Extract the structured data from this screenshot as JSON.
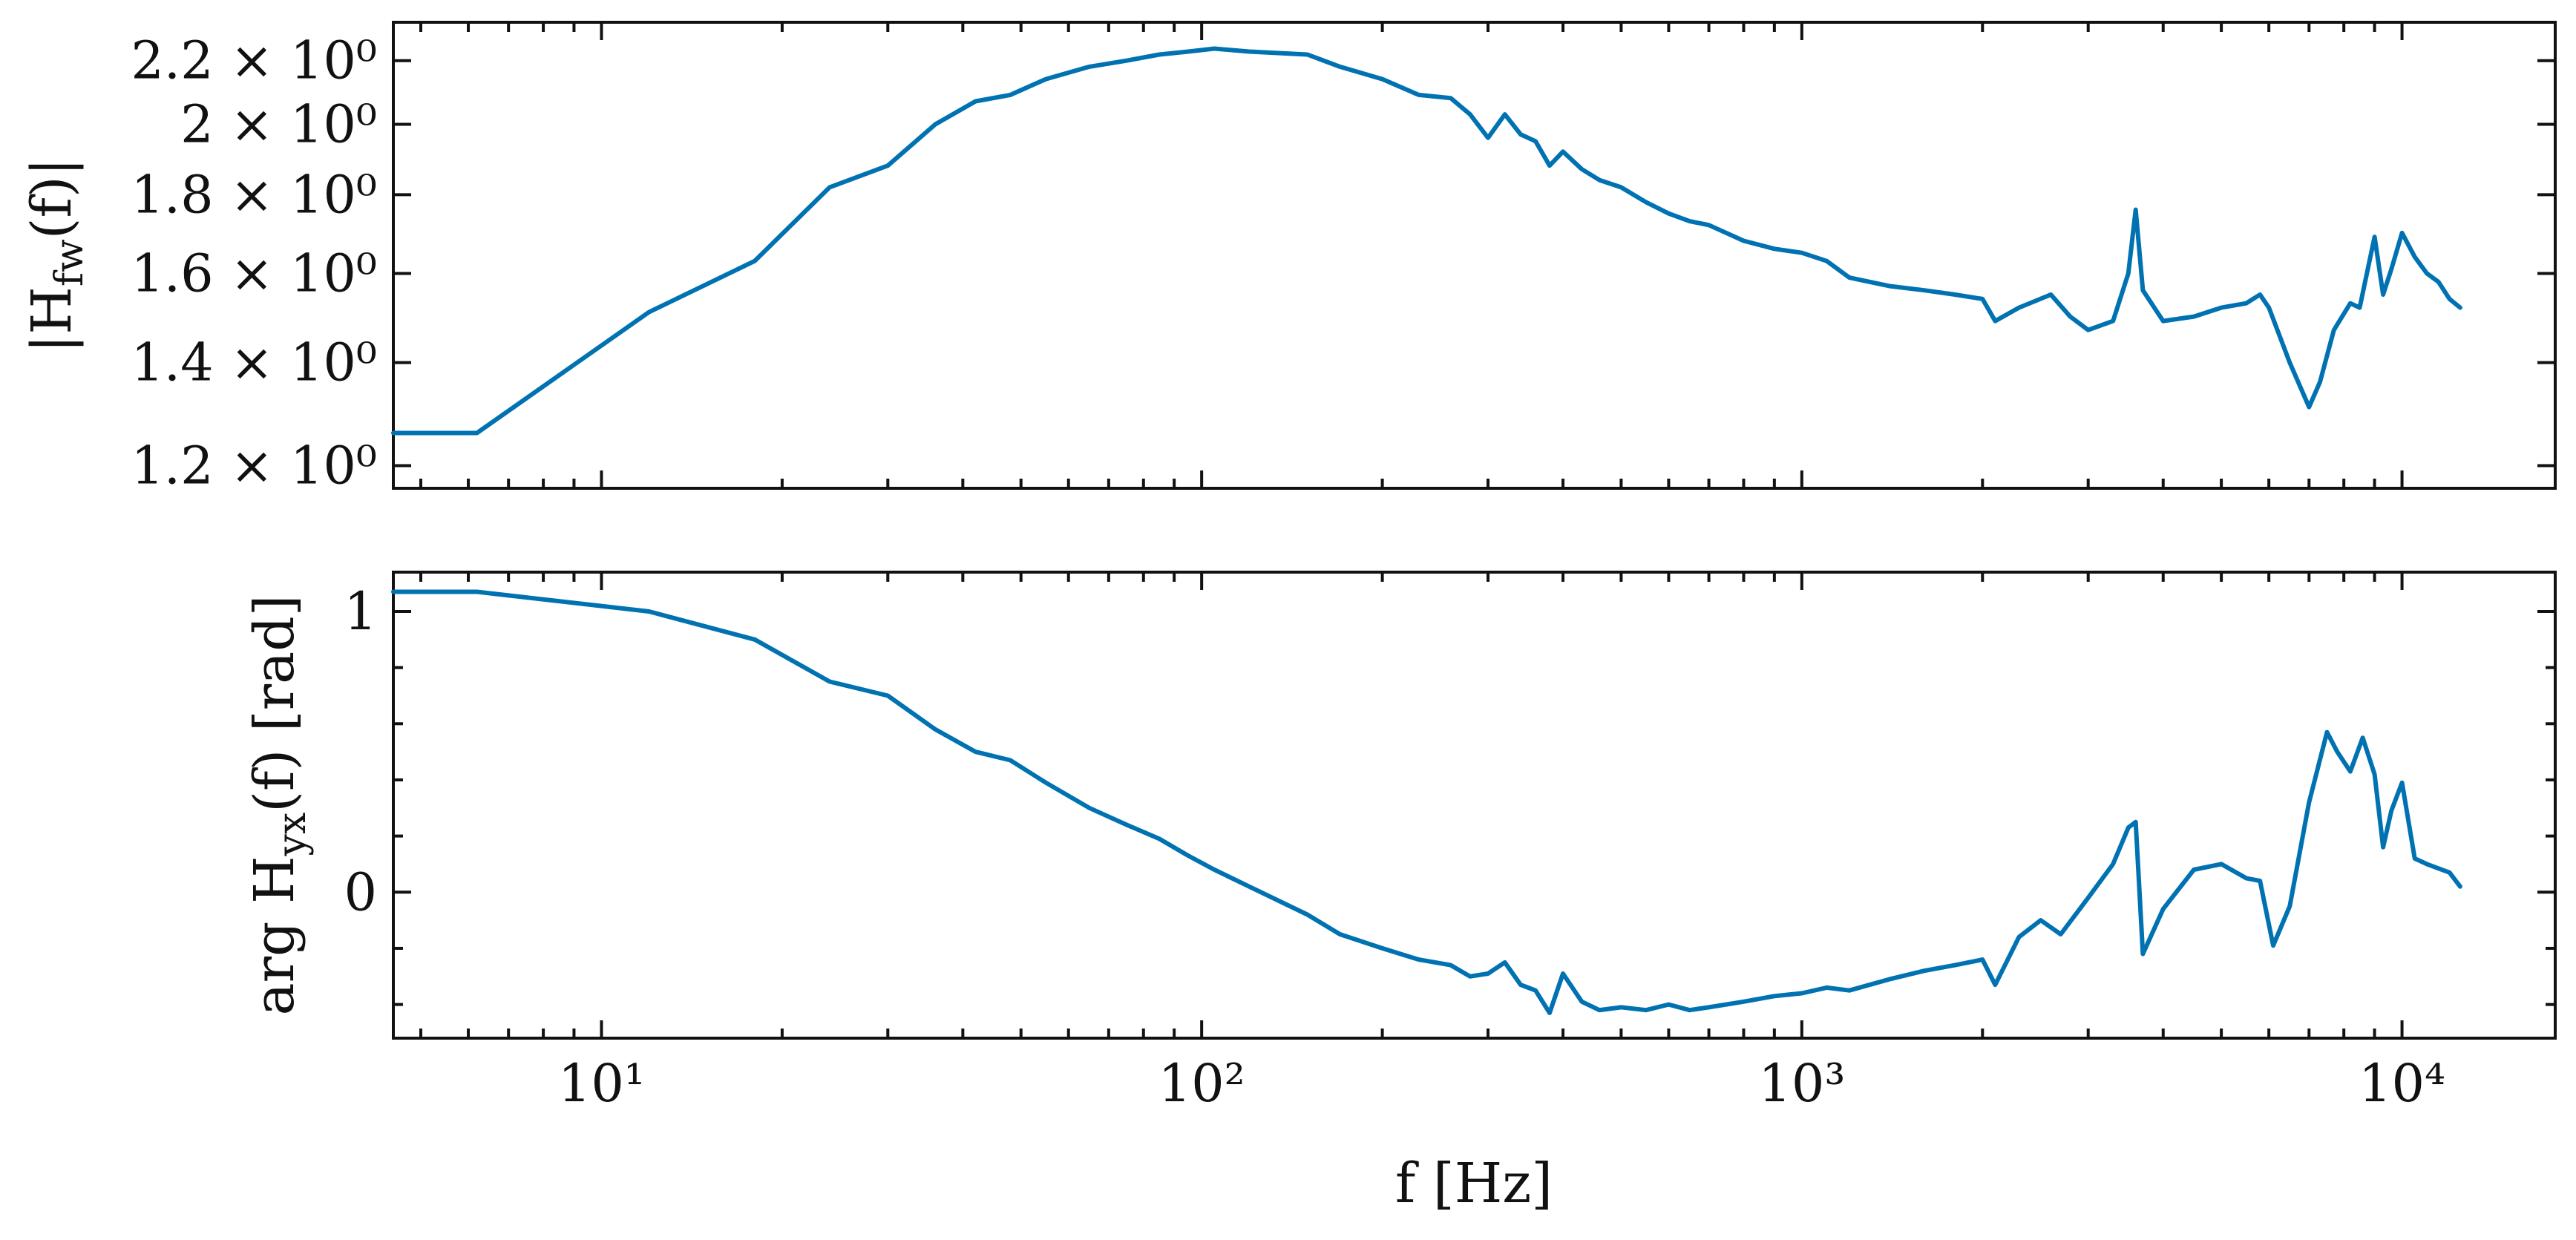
{
  "chart_data": [
    {
      "type": "line",
      "panel": "top",
      "ylabel_html": "|H<tspan font-size='52' dy='16'>fw</tspan><tspan dy='-16'>(f)|</tspan>",
      "ylabel": "|H_fw(f)|",
      "xscale": "log",
      "yscale": "log",
      "xlim": [
        4.5,
        18000
      ],
      "ylim": [
        1.16,
        2.33
      ],
      "grid": false,
      "yticks": [
        1.2,
        1.4,
        1.6,
        1.8,
        2.0,
        2.2
      ],
      "ytick_labels": [
        "1.2 × 10⁰",
        "1.4 × 10⁰",
        "1.6 × 10⁰",
        "1.8 × 10⁰",
        "2 × 10⁰",
        "2.2 × 10⁰"
      ],
      "color": "#0072b2",
      "series": [
        {
          "x": [
            4.5,
            6.2,
            12,
            18,
            24,
            30,
            36,
            42,
            48,
            55,
            65,
            75,
            85,
            95,
            105,
            120,
            150,
            170,
            200,
            230,
            260,
            280,
            300,
            320,
            340,
            360,
            380,
            400,
            430,
            460,
            500,
            550,
            600,
            650,
            700,
            800,
            900,
            1000,
            1100,
            1200,
            1400,
            1600,
            1800,
            2000,
            2100,
            2300,
            2600,
            2800,
            3000,
            3300,
            3500,
            3600,
            3700,
            4000,
            4500,
            5000,
            5500,
            5800,
            6000,
            6500,
            7000,
            7300,
            7700,
            8200,
            8500,
            9000,
            9300,
            9600,
            10000,
            10500,
            11000,
            11500,
            12000,
            12500
          ],
          "y": [
            1.26,
            1.26,
            1.51,
            1.63,
            1.82,
            1.88,
            2.0,
            2.07,
            2.09,
            2.14,
            2.18,
            2.2,
            2.22,
            2.23,
            2.24,
            2.23,
            2.22,
            2.18,
            2.14,
            2.09,
            2.08,
            2.03,
            1.96,
            2.03,
            1.97,
            1.95,
            1.88,
            1.92,
            1.87,
            1.84,
            1.82,
            1.78,
            1.75,
            1.73,
            1.72,
            1.68,
            1.66,
            1.65,
            1.63,
            1.59,
            1.57,
            1.56,
            1.55,
            1.54,
            1.49,
            1.52,
            1.55,
            1.5,
            1.47,
            1.49,
            1.6,
            1.76,
            1.56,
            1.49,
            1.5,
            1.52,
            1.53,
            1.55,
            1.52,
            1.4,
            1.31,
            1.36,
            1.47,
            1.53,
            1.52,
            1.69,
            1.55,
            1.61,
            1.7,
            1.64,
            1.6,
            1.58,
            1.54,
            1.52
          ]
        }
      ]
    },
    {
      "type": "line",
      "panel": "bottom",
      "ylabel_html": "arg H<tspan font-size='52' dy='16'>yx</tspan><tspan dy='-16'>(f) [rad]</tspan>",
      "ylabel": "arg H_yx(f) [rad]",
      "xlabel": "f [Hz]",
      "xscale": "log",
      "xlim": [
        4.5,
        18000
      ],
      "ylim": [
        -0.52,
        1.14
      ],
      "grid": false,
      "yticks": [
        0,
        1
      ],
      "ytick_labels": [
        "0",
        "1"
      ],
      "xticks": [
        10,
        100,
        1000,
        10000
      ],
      "xtick_labels": [
        "10¹",
        "10²",
        "10³",
        "10⁴"
      ],
      "color": "#0072b2",
      "series": [
        {
          "x": [
            4.5,
            6.2,
            12,
            18,
            24,
            30,
            36,
            42,
            48,
            55,
            65,
            75,
            85,
            95,
            105,
            120,
            150,
            170,
            200,
            230,
            260,
            280,
            300,
            320,
            340,
            360,
            380,
            400,
            430,
            460,
            500,
            550,
            600,
            650,
            700,
            800,
            900,
            1000,
            1100,
            1200,
            1400,
            1600,
            1800,
            2000,
            2100,
            2300,
            2500,
            2700,
            3000,
            3300,
            3500,
            3600,
            3700,
            4000,
            4500,
            5000,
            5500,
            5800,
            6100,
            6500,
            7000,
            7500,
            7800,
            8200,
            8600,
            9000,
            9300,
            9600,
            10000,
            10500,
            11000,
            12000,
            12500
          ],
          "y": [
            1.07,
            1.07,
            1.0,
            0.9,
            0.75,
            0.7,
            0.58,
            0.5,
            0.47,
            0.39,
            0.3,
            0.24,
            0.19,
            0.13,
            0.08,
            0.02,
            -0.08,
            -0.15,
            -0.2,
            -0.24,
            -0.26,
            -0.3,
            -0.29,
            -0.25,
            -0.33,
            -0.35,
            -0.43,
            -0.29,
            -0.39,
            -0.42,
            -0.41,
            -0.42,
            -0.4,
            -0.42,
            -0.41,
            -0.39,
            -0.37,
            -0.36,
            -0.34,
            -0.35,
            -0.31,
            -0.28,
            -0.26,
            -0.24,
            -0.33,
            -0.16,
            -0.1,
            -0.15,
            -0.02,
            0.1,
            0.23,
            0.25,
            -0.22,
            -0.06,
            0.08,
            0.1,
            0.05,
            0.04,
            -0.19,
            -0.05,
            0.32,
            0.57,
            0.5,
            0.43,
            0.55,
            0.42,
            0.16,
            0.29,
            0.39,
            0.12,
            0.1,
            0.07,
            0.02
          ]
        }
      ]
    }
  ]
}
